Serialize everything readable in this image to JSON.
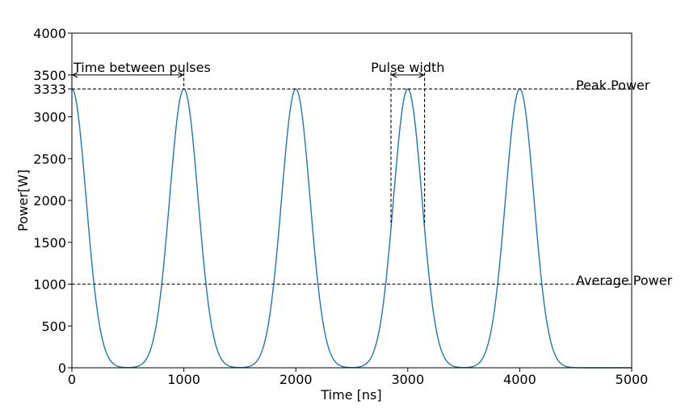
{
  "chart_data": {
    "type": "line",
    "xlabel": "Time [ns]",
    "ylabel": "Power[W]",
    "xlim": [
      0,
      5000
    ],
    "ylim": [
      0,
      4000
    ],
    "x_ticks": [
      0,
      1000,
      2000,
      3000,
      4000,
      5000
    ],
    "y_ticks": [
      0,
      500,
      1000,
      1500,
      2000,
      2500,
      3000,
      3333,
      3500,
      4000
    ],
    "grid": false,
    "legend": "none",
    "series": [
      {
        "color": "#1f77b4",
        "shape": "gaussian pulse train",
        "peak_power": 3333,
        "pulse_period": 1000,
        "pulse_width": 300,
        "peak_times": [
          0,
          1000,
          2000,
          3000,
          4000
        ],
        "x": [
          0,
          100,
          200,
          300,
          400,
          500,
          600,
          700,
          800,
          900,
          1000
        ],
        "y": [
          3333,
          2290,
          762,
          125,
          8,
          0,
          8,
          125,
          762,
          2290,
          3333
        ]
      }
    ],
    "reference_lines": [
      {
        "label": "Peak Power",
        "y": 3333,
        "style": "dashed"
      },
      {
        "label": "Average Power",
        "y": 1000,
        "style": "dashed"
      }
    ],
    "annotations": [
      {
        "label": "Time between pulses",
        "x_start": 0,
        "x_end": 1000,
        "y": 3500,
        "type": "double-arrow"
      },
      {
        "label": "Pulse width",
        "x_start": 2850,
        "x_end": 3150,
        "y": 3500,
        "type": "double-arrow",
        "bracket_bottom": 1700
      }
    ]
  }
}
